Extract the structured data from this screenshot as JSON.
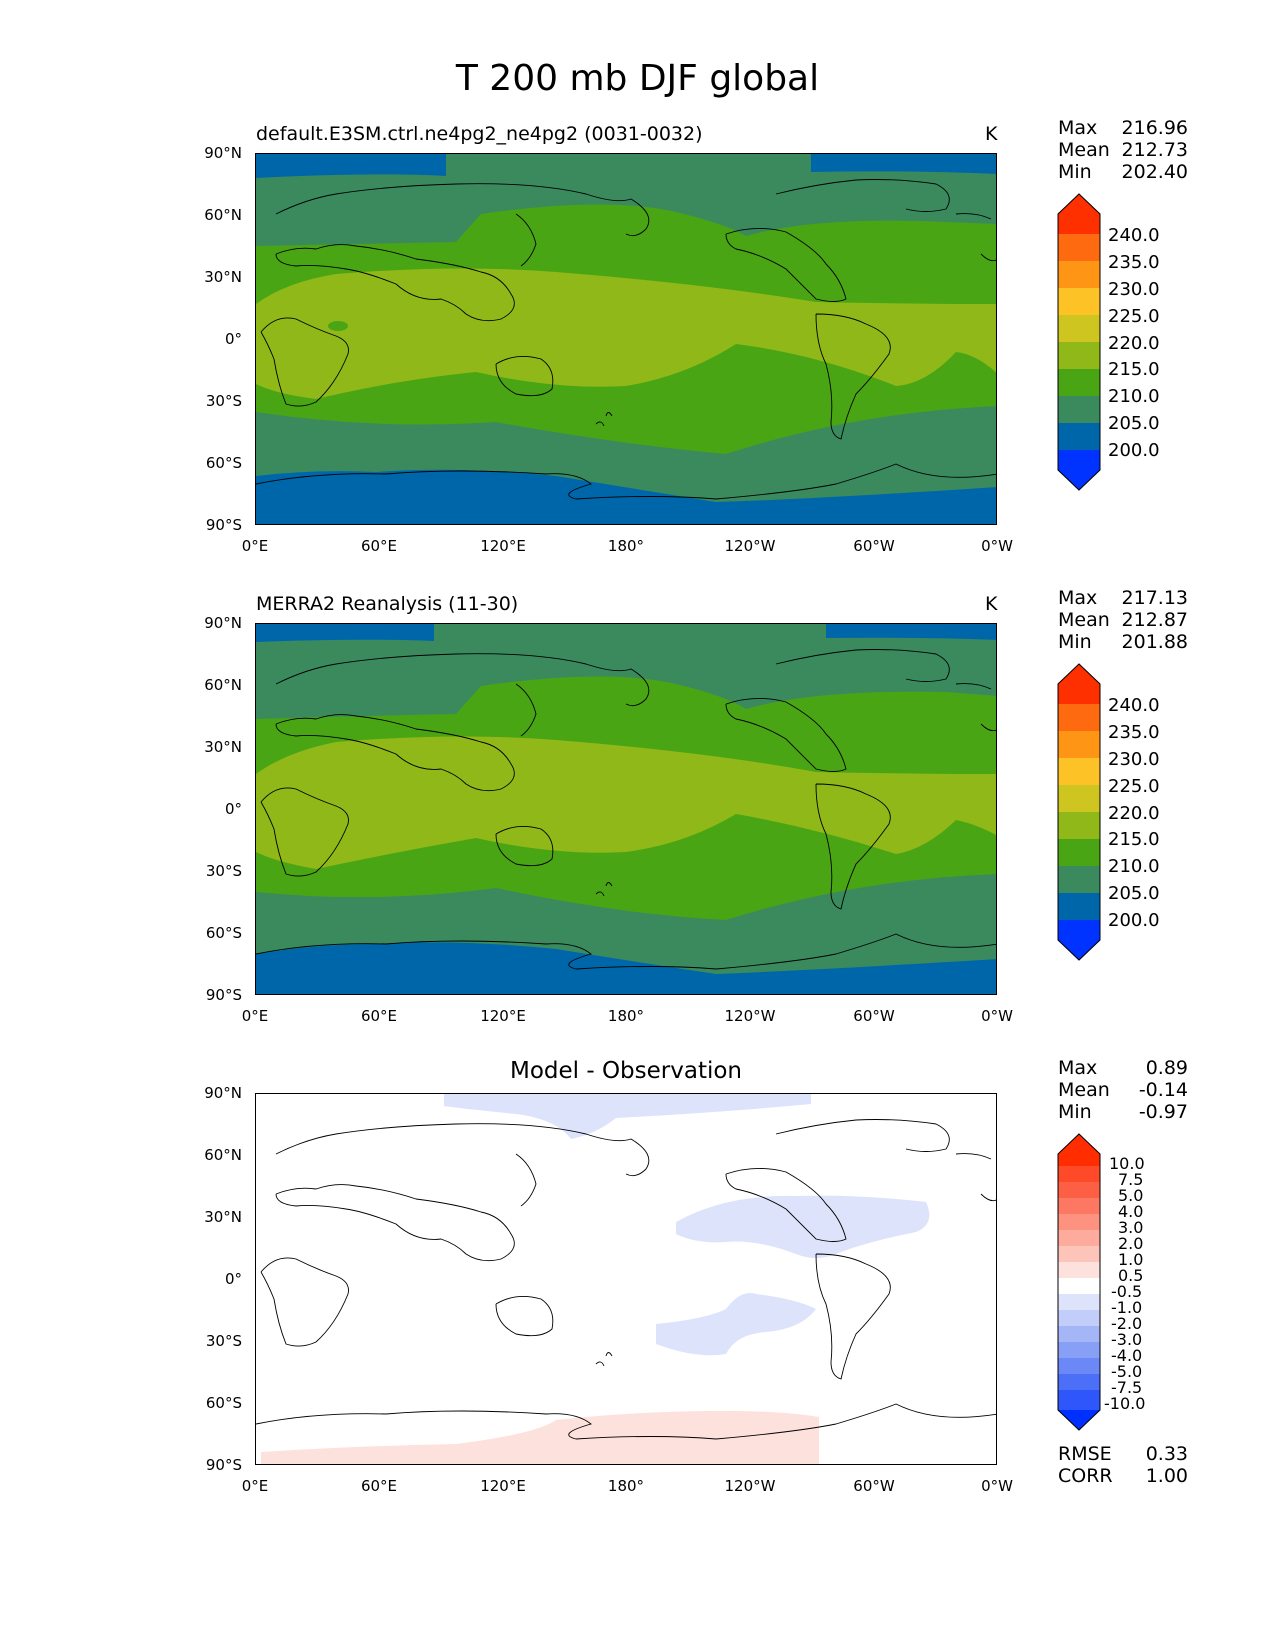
{
  "figure_title": "T 200 mb DJF global",
  "latitude_labels": [
    "90°N",
    "60°N",
    "30°N",
    "0°",
    "30°S",
    "60°S",
    "90°S"
  ],
  "longitude_labels": [
    "0°E",
    "60°E",
    "120°E",
    "180°",
    "120°W",
    "60°W",
    "0°W"
  ],
  "panels": [
    {
      "title": "default.E3SM.ctrl.ne4pg2_ne4pg2 (0031-0032)",
      "units": "K",
      "stats": {
        "max_label": "Max",
        "max": "216.96",
        "mean_label": "Mean",
        "mean": "212.73",
        "min_label": "Min",
        "min": "202.40"
      },
      "colorbar_labels": [
        "240.0",
        "235.0",
        "230.0",
        "225.0",
        "220.0",
        "215.0",
        "210.0",
        "205.0",
        "200.0"
      ]
    },
    {
      "title": "MERRA2 Reanalysis (11-30)",
      "units": "K",
      "stats": {
        "max_label": "Max",
        "max": "217.13",
        "mean_label": "Mean",
        "mean": "212.87",
        "min_label": "Min",
        "min": "201.88"
      },
      "colorbar_labels": [
        "240.0",
        "235.0",
        "230.0",
        "225.0",
        "220.0",
        "215.0",
        "210.0",
        "205.0",
        "200.0"
      ]
    },
    {
      "title": "Model - Observation",
      "units": "",
      "stats": {
        "max_label": "Max",
        "max": "0.89",
        "mean_label": "Mean",
        "mean": "-0.14",
        "min_label": "Min",
        "min": "-0.97"
      },
      "colorbar_labels": [
        "10.0",
        "7.5",
        "5.0",
        "4.0",
        "3.0",
        "2.0",
        "1.0",
        "0.5",
        "-0.5",
        "-1.0",
        "-2.0",
        "-3.0",
        "-4.0",
        "-5.0",
        "-7.5",
        "-10.0"
      ],
      "metrics": {
        "rmse_label": "RMSE",
        "rmse": "0.33",
        "corr_label": "CORR",
        "corr": "1.00"
      }
    }
  ],
  "colors": {
    "c200": "#0033ff",
    "c205": "#0066aa",
    "c210": "#3a8a5e",
    "c215": "#4aa514",
    "c220": "#90b818",
    "c225": "#cfc520",
    "c230": "#fcc226",
    "c235": "#fe9514",
    "c240": "#fe6a10",
    "cmax": "#ff3000",
    "diff_blue": "#dce3fb",
    "diff_pink": "#fde1dc",
    "coast": "#000000"
  }
}
